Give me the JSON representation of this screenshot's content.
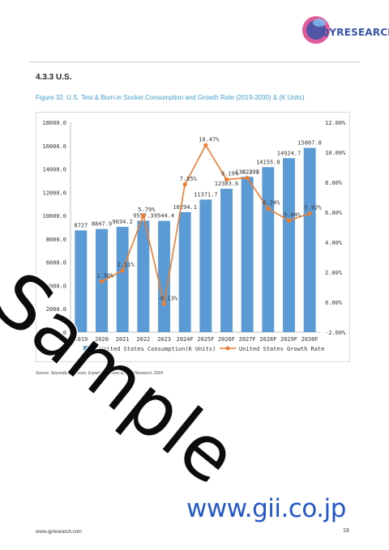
{
  "header": {
    "logo_text": "QYRESEARCH"
  },
  "section": {
    "title": "4.3.3  U.S."
  },
  "figure": {
    "caption": "Figure 32.   U.S. Test & Burn-in Socket Consumption and Growth Rate (2019-2030) & (K Units)"
  },
  "source": "Source: Secondary Sources, Expert Interviews and QYResearch, 2024",
  "watermark": "Sample",
  "gii_url": "www.gii.co.jp",
  "footer": {
    "url": "www.qyresearch.com",
    "page": "19"
  },
  "colors": {
    "bar": "#5b9bd5",
    "line": "#ed7d31",
    "caption": "#3fa0d8",
    "logo": "#3a55a8"
  },
  "chart_data": {
    "type": "bar",
    "categories": [
      "2019",
      "2020",
      "2021",
      "2022",
      "2023",
      "2024F",
      "2025F",
      "2026F",
      "2027F",
      "2028F",
      "2029F",
      "2030F"
    ],
    "series": [
      {
        "name": "United States Consumption(K Units)",
        "type": "bar",
        "axis": "left",
        "values": [
          8727,
          8847.9,
          9034.2,
          9557.3,
          9544.4,
          10294.1,
          11371.7,
          12303.6,
          13323.2,
          14155.0,
          14924.7,
          15807.8
        ],
        "labels": [
          "8727",
          "8847.9",
          "9034.2",
          "9557.3",
          "9544.4",
          "10294.1",
          "11371.7",
          "12303.6",
          "13323.2",
          "14155.0",
          "14924.7",
          "15807.8"
        ]
      },
      {
        "name": "United States Growth Rate",
        "type": "line",
        "axis": "right",
        "values": [
          null,
          1.38,
          2.11,
          5.79,
          -0.13,
          7.85,
          10.47,
          8.19,
          8.29,
          6.24,
          5.44,
          5.92
        ],
        "labels": [
          "",
          "1.38%",
          "2.11%",
          "5.79%",
          "-0.13%",
          "7.85%",
          "10.47%",
          "8.19%",
          "8.29%",
          "6.24%",
          "5.44%",
          "5.92%"
        ]
      }
    ],
    "ylim": [
      0,
      18000
    ],
    "y_ticks": [
      "0.0",
      "2000.0",
      "4000.0",
      "6000.0",
      "8000.0",
      "10000.0",
      "12000.0",
      "14000.0",
      "16000.0",
      "18000.0"
    ],
    "y2lim": [
      -2,
      12
    ],
    "y2_ticks": [
      "-2.00%",
      "0.00%",
      "2.00%",
      "4.00%",
      "6.00%",
      "8.00%",
      "10.00%",
      "12.00%"
    ],
    "legend_position": "bottom",
    "grid": false
  }
}
